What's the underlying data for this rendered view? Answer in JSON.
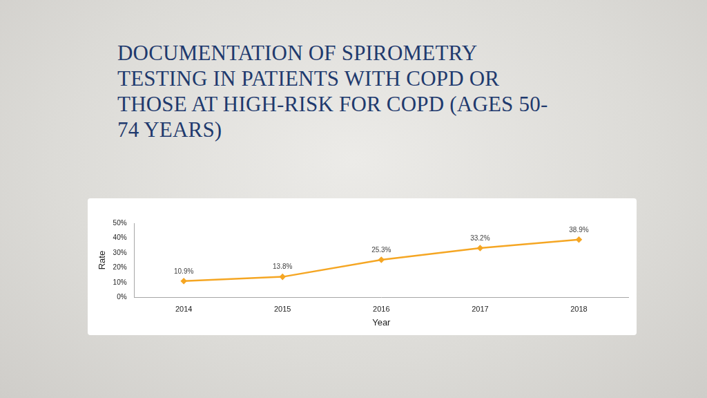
{
  "chart_data": {
    "type": "line",
    "title": "DOCUMENTATION OF SPIROMETRY TESTING IN PATIENTS WITH COPD OR THOSE AT HIGH-RISK FOR COPD (AGES 50-74 YEARS)",
    "x_label": "Year",
    "y_label": "Rate",
    "categories": [
      "2014",
      "2015",
      "2016",
      "2017",
      "2018"
    ],
    "values": [
      10.9,
      13.8,
      25.3,
      33.2,
      38.9
    ],
    "value_labels": [
      "10.9%",
      "13.8%",
      "25.3%",
      "33.2%",
      "38.9%"
    ],
    "color": "#f5a623",
    "marker": "diamond",
    "data_labels": true,
    "grid": false,
    "ylim": [
      0,
      50
    ],
    "yticks": [
      {
        "value": 0,
        "label": "0%"
      },
      {
        "value": 10,
        "label": "10%"
      },
      {
        "value": 20,
        "label": "20%"
      },
      {
        "value": 30,
        "label": "30%"
      },
      {
        "value": 40,
        "label": "40%"
      },
      {
        "value": 50,
        "label": "50%"
      }
    ]
  }
}
